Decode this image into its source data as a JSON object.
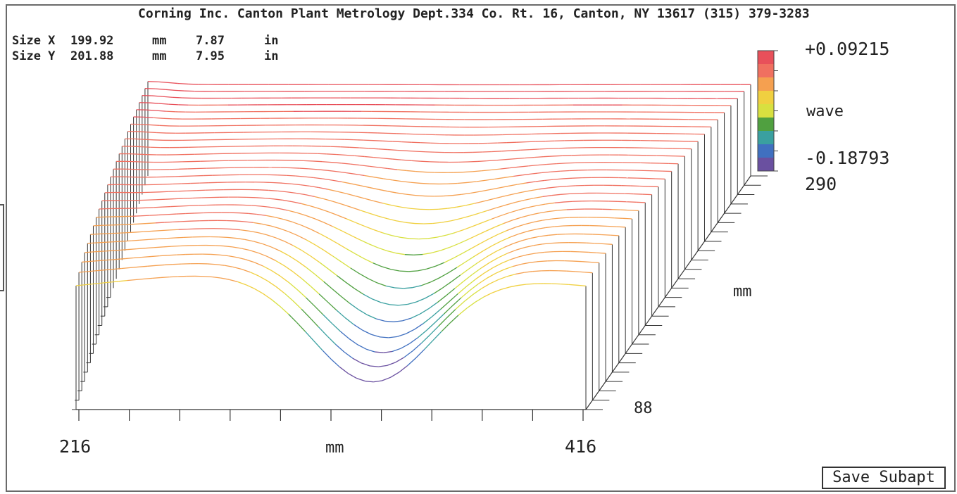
{
  "header": {
    "title": "Corning Inc. Canton Plant Metrology Dept.334 Co. Rt. 16, Canton, NY 13617 (315) 379-3283"
  },
  "size_info": {
    "x_label": "Size X",
    "x_mm": "199.92",
    "x_mm_unit": "mm",
    "x_in": "7.87",
    "x_in_unit": "in",
    "y_label": "Size Y",
    "y_mm": "201.88",
    "y_mm_unit": "mm",
    "y_in": "7.95",
    "y_in_unit": "in"
  },
  "colorbar": {
    "max_label": "+0.09215",
    "unit_label": "wave",
    "min_label": "-0.18793",
    "colors": [
      "#e8505a",
      "#f07060",
      "#f5a050",
      "#f0d040",
      "#d8e040",
      "#50a040",
      "#3aa0a0",
      "#4070c0",
      "#6a50a0"
    ]
  },
  "chart_data": {
    "type": "surface-3d-waterfall",
    "title": "",
    "x_axis": {
      "min": 216,
      "max": 416,
      "label": "mm",
      "min_label": "216",
      "max_label": "416"
    },
    "y_axis": {
      "min": 88,
      "max": 290,
      "label": "mm",
      "min_label": "88",
      "max_label": "290"
    },
    "z_axis": {
      "min": -0.18793,
      "max": 0.09215,
      "label": "wave"
    },
    "profile_count": 26
  },
  "buttons": {
    "save_subapt": "Save Subapt"
  }
}
